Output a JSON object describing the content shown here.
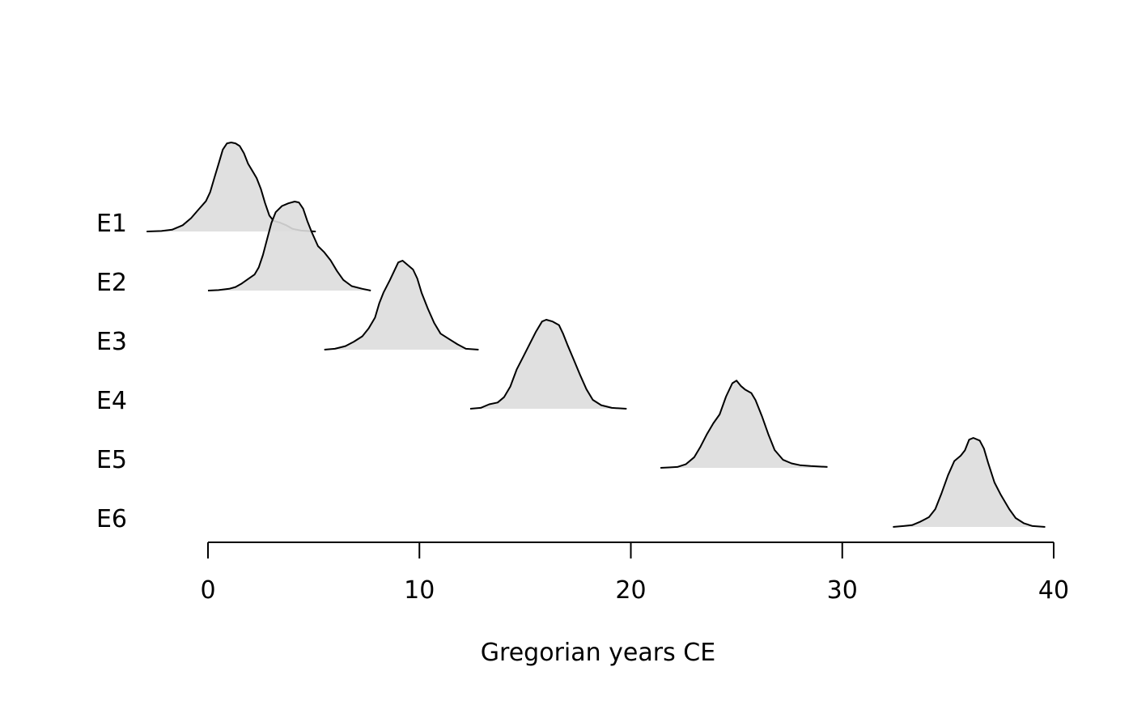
{
  "chart_data": {
    "type": "area",
    "subtype": "stacked-density-ridgeline",
    "xlabel": "Gregorian years CE",
    "xlim": [
      0,
      40
    ],
    "x_ticks": [
      0,
      10,
      20,
      30,
      40
    ],
    "fill_color": "#dddddd",
    "line_color": "#000000",
    "series": [
      {
        "name": "E1",
        "points": [
          [
            -2.9,
            0
          ],
          [
            -2.2,
            0.005
          ],
          [
            -1.7,
            0.02
          ],
          [
            -1.2,
            0.07
          ],
          [
            -0.8,
            0.15
          ],
          [
            -0.4,
            0.26
          ],
          [
            -0.1,
            0.34
          ],
          [
            0.1,
            0.44
          ],
          [
            0.3,
            0.6
          ],
          [
            0.5,
            0.76
          ],
          [
            0.7,
            0.92
          ],
          [
            0.9,
            0.99
          ],
          [
            1.1,
            1.0
          ],
          [
            1.3,
            0.99
          ],
          [
            1.5,
            0.96
          ],
          [
            1.7,
            0.88
          ],
          [
            1.9,
            0.76
          ],
          [
            2.1,
            0.68
          ],
          [
            2.3,
            0.6
          ],
          [
            2.5,
            0.48
          ],
          [
            2.7,
            0.32
          ],
          [
            2.9,
            0.18
          ],
          [
            3.1,
            0.12
          ],
          [
            3.4,
            0.1
          ],
          [
            3.7,
            0.07
          ],
          [
            4.0,
            0.03
          ],
          [
            4.4,
            0.01
          ],
          [
            5.1,
            0
          ]
        ]
      },
      {
        "name": "E2",
        "points": [
          [
            0.0,
            0
          ],
          [
            0.5,
            0.005
          ],
          [
            1.0,
            0.02
          ],
          [
            1.3,
            0.04
          ],
          [
            1.6,
            0.08
          ],
          [
            1.9,
            0.13
          ],
          [
            2.2,
            0.18
          ],
          [
            2.4,
            0.26
          ],
          [
            2.6,
            0.4
          ],
          [
            2.8,
            0.58
          ],
          [
            3.0,
            0.76
          ],
          [
            3.2,
            0.88
          ],
          [
            3.5,
            0.95
          ],
          [
            3.8,
            0.98
          ],
          [
            4.1,
            1.0
          ],
          [
            4.3,
            0.99
          ],
          [
            4.5,
            0.92
          ],
          [
            4.7,
            0.78
          ],
          [
            4.9,
            0.66
          ],
          [
            5.2,
            0.5
          ],
          [
            5.5,
            0.43
          ],
          [
            5.8,
            0.34
          ],
          [
            6.1,
            0.22
          ],
          [
            6.4,
            0.12
          ],
          [
            6.8,
            0.05
          ],
          [
            7.3,
            0.02
          ],
          [
            7.7,
            0
          ]
        ]
      },
      {
        "name": "E3",
        "points": [
          [
            5.5,
            0
          ],
          [
            6.0,
            0.01
          ],
          [
            6.5,
            0.04
          ],
          [
            6.9,
            0.09
          ],
          [
            7.3,
            0.15
          ],
          [
            7.6,
            0.24
          ],
          [
            7.9,
            0.36
          ],
          [
            8.1,
            0.52
          ],
          [
            8.3,
            0.64
          ],
          [
            8.6,
            0.78
          ],
          [
            8.8,
            0.88
          ],
          [
            9.0,
            0.98
          ],
          [
            9.2,
            1.0
          ],
          [
            9.4,
            0.96
          ],
          [
            9.7,
            0.9
          ],
          [
            9.9,
            0.8
          ],
          [
            10.1,
            0.64
          ],
          [
            10.4,
            0.46
          ],
          [
            10.7,
            0.3
          ],
          [
            11.0,
            0.18
          ],
          [
            11.4,
            0.12
          ],
          [
            11.8,
            0.06
          ],
          [
            12.2,
            0.01
          ],
          [
            12.8,
            0
          ]
        ]
      },
      {
        "name": "E4",
        "points": [
          [
            12.4,
            0
          ],
          [
            12.9,
            0.01
          ],
          [
            13.3,
            0.05
          ],
          [
            13.7,
            0.07
          ],
          [
            14.0,
            0.13
          ],
          [
            14.3,
            0.25
          ],
          [
            14.6,
            0.44
          ],
          [
            14.9,
            0.58
          ],
          [
            15.2,
            0.72
          ],
          [
            15.5,
            0.86
          ],
          [
            15.8,
            0.98
          ],
          [
            16.0,
            1.0
          ],
          [
            16.3,
            0.98
          ],
          [
            16.6,
            0.94
          ],
          [
            16.8,
            0.84
          ],
          [
            17.0,
            0.72
          ],
          [
            17.3,
            0.55
          ],
          [
            17.6,
            0.38
          ],
          [
            17.9,
            0.22
          ],
          [
            18.2,
            0.1
          ],
          [
            18.6,
            0.04
          ],
          [
            19.1,
            0.01
          ],
          [
            19.8,
            0
          ]
        ]
      },
      {
        "name": "E5",
        "points": [
          [
            21.4,
            0
          ],
          [
            21.8,
            0.005
          ],
          [
            22.2,
            0.01
          ],
          [
            22.6,
            0.04
          ],
          [
            23.0,
            0.12
          ],
          [
            23.3,
            0.24
          ],
          [
            23.6,
            0.38
          ],
          [
            23.9,
            0.5
          ],
          [
            24.2,
            0.6
          ],
          [
            24.5,
            0.8
          ],
          [
            24.8,
            0.95
          ],
          [
            25.0,
            0.98
          ],
          [
            25.2,
            0.92
          ],
          [
            25.4,
            0.88
          ],
          [
            25.7,
            0.84
          ],
          [
            25.9,
            0.76
          ],
          [
            26.2,
            0.58
          ],
          [
            26.5,
            0.38
          ],
          [
            26.8,
            0.2
          ],
          [
            27.2,
            0.09
          ],
          [
            27.6,
            0.05
          ],
          [
            28.0,
            0.03
          ],
          [
            28.5,
            0.02
          ],
          [
            29.3,
            0.01
          ]
        ]
      },
      {
        "name": "E6",
        "points": [
          [
            32.4,
            0
          ],
          [
            32.9,
            0.01
          ],
          [
            33.3,
            0.02
          ],
          [
            33.7,
            0.06
          ],
          [
            34.1,
            0.11
          ],
          [
            34.4,
            0.2
          ],
          [
            34.7,
            0.38
          ],
          [
            35.0,
            0.58
          ],
          [
            35.3,
            0.74
          ],
          [
            35.6,
            0.8
          ],
          [
            35.8,
            0.86
          ],
          [
            36.0,
            0.98
          ],
          [
            36.2,
            1.0
          ],
          [
            36.5,
            0.97
          ],
          [
            36.7,
            0.88
          ],
          [
            36.9,
            0.72
          ],
          [
            37.2,
            0.5
          ],
          [
            37.5,
            0.36
          ],
          [
            37.9,
            0.2
          ],
          [
            38.2,
            0.1
          ],
          [
            38.6,
            0.04
          ],
          [
            39.0,
            0.01
          ],
          [
            39.6,
            0
          ]
        ]
      }
    ]
  }
}
